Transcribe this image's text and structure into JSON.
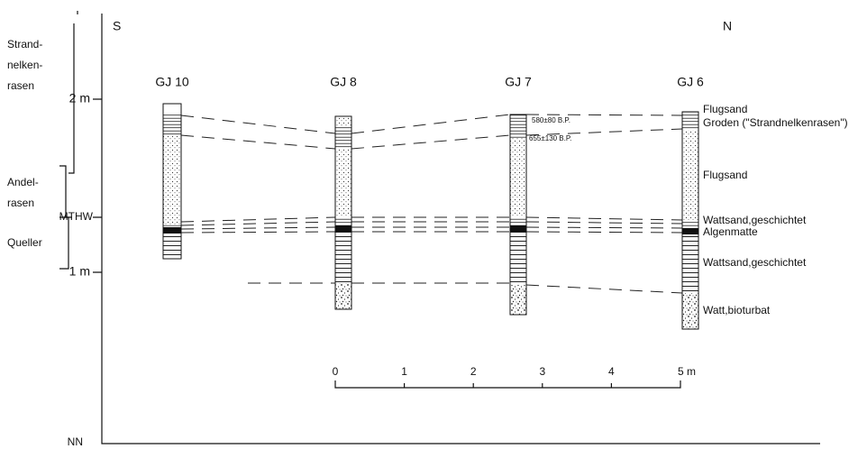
{
  "header": {
    "south": "S",
    "north": "N"
  },
  "zones": [
    {
      "lines": [
        "Strand-",
        "nelken-",
        "rasen"
      ]
    },
    {
      "lines": [
        "Andel-",
        "rasen"
      ]
    },
    {
      "lines": [
        "Queller"
      ]
    }
  ],
  "axis": {
    "labels": [
      "2 m",
      "MTHW",
      "1 m",
      "NN"
    ]
  },
  "cores": [
    {
      "label": "GJ 10"
    },
    {
      "label": "GJ 8"
    },
    {
      "label": "GJ 7"
    },
    {
      "label": "GJ 6"
    }
  ],
  "dates": [
    "580±80 B.P.",
    "655±130 B.P."
  ],
  "legend": [
    "Flugsand",
    "Groden (\"Strandnelkenrasen\")",
    "Flugsand",
    "Wattsand,geschichtet",
    "Algenmatte",
    "Wattsand,geschichtet",
    "Watt,bioturbat"
  ],
  "scale": [
    "0",
    "1",
    "2",
    "3",
    "4",
    "5 m"
  ]
}
